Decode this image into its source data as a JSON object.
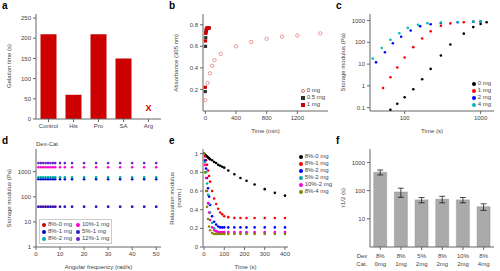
{
  "chart_data": [
    {
      "type": "bar",
      "title": "a",
      "categories": [
        "Control",
        "His",
        "Pro",
        "SA",
        "Arg"
      ],
      "values": [
        210,
        60,
        210,
        150,
        0
      ],
      "color": "#cc0000",
      "ylabel": "Gelation time (s)",
      "ylim": [
        0,
        260
      ],
      "yticks": [
        0,
        50,
        100,
        150,
        200,
        250
      ],
      "grid": false,
      "annotations": [
        {
          "text": "X",
          "x": "Arg",
          "y": 8,
          "color": "#cc0000"
        }
      ]
    },
    {
      "type": "scatter",
      "title": "b",
      "xlabel": "Time (min)",
      "ylabel": "Absorbance (305 nm)",
      "xlim": [
        -30,
        1600
      ],
      "xticks": [
        0,
        400,
        800,
        1200
      ],
      "ylim": [
        0,
        0.9
      ],
      "yticks": [
        0.2,
        0.4,
        0.6,
        0.8
      ],
      "grid": false,
      "legend": "lower right",
      "series": [
        {
          "name": "0 mg",
          "color": "#e07070",
          "marker": "open_circle",
          "x": [
            0,
            30,
            60,
            90,
            120,
            200,
            400,
            600,
            800,
            1000,
            1200,
            1500
          ],
          "values": [
            0.1,
            0.26,
            0.35,
            0.42,
            0.47,
            0.53,
            0.6,
            0.64,
            0.67,
            0.69,
            0.7,
            0.72
          ]
        },
        {
          "name": "0.5 mg",
          "color": "#303030",
          "marker": "square",
          "x": [
            0,
            3,
            6,
            10,
            15,
            20,
            30,
            50
          ],
          "values": [
            0.18,
            0.6,
            0.68,
            0.73,
            0.75,
            0.76,
            0.77,
            0.77
          ]
        },
        {
          "name": "1 mg",
          "color": "#cc0000",
          "marker": "square",
          "x": [
            0,
            3,
            6,
            10,
            15,
            20,
            30,
            50
          ],
          "values": [
            0.22,
            0.65,
            0.72,
            0.75,
            0.76,
            0.77,
            0.77,
            0.77
          ]
        }
      ]
    },
    {
      "type": "scatter",
      "title": "c",
      "xlabel": "Time (s)",
      "ylabel": "Storage modulus (Pa)",
      "log": true,
      "xlim": [
        35,
        1500
      ],
      "xticks": [
        100,
        1000
      ],
      "ylim": [
        0.07,
        2000
      ],
      "yticks": [
        0.1,
        1,
        10,
        100,
        1000
      ],
      "grid": false,
      "legend": "lower right",
      "series": [
        {
          "name": "0 mg",
          "color": "black",
          "marker": "dot",
          "x": [
            65,
            80,
            100,
            130,
            170,
            220,
            300,
            400,
            600,
            800,
            1000,
            1200
          ],
          "values": [
            0.08,
            0.15,
            0.3,
            0.7,
            2.0,
            6.0,
            25,
            80,
            250,
            500,
            700,
            830
          ]
        },
        {
          "name": "1 mg",
          "color": "red",
          "marker": "dot",
          "x": [
            52,
            65,
            80,
            100,
            130,
            170,
            220,
            300,
            400,
            600,
            800,
            1000
          ],
          "values": [
            0.8,
            2.5,
            7,
            20,
            60,
            150,
            320,
            580,
            740,
            840,
            880,
            910
          ]
        },
        {
          "name": "2 mg",
          "color": "blue",
          "marker": "dot",
          "x": [
            42,
            55,
            70,
            90,
            120,
            160,
            220,
            300,
            500,
            800,
            1000
          ],
          "values": [
            12,
            35,
            90,
            180,
            350,
            550,
            680,
            770,
            840,
            880,
            900
          ]
        },
        {
          "name": "4 mg",
          "color": "#00bbbb",
          "marker": "dot",
          "x": [
            38,
            50,
            65,
            85,
            110,
            150,
            200,
            300,
            500,
            800,
            1000
          ],
          "values": [
            18,
            55,
            130,
            260,
            460,
            640,
            750,
            820,
            860,
            890,
            910
          ]
        }
      ]
    },
    {
      "type": "scatter",
      "title": "d",
      "subtitle": "Dex-Cat",
      "xlabel": "Angular frequency (rad/s)",
      "ylabel": "Storage modulus (Pa)",
      "log": "y",
      "xlim": [
        0,
        52
      ],
      "xticks": [
        0,
        10,
        20,
        30,
        40,
        50
      ],
      "ylim": [
        1,
        8000
      ],
      "yticks": [
        1,
        10,
        100,
        1000
      ],
      "grid": false,
      "legend": "lower left",
      "x": [
        1,
        2,
        3,
        4,
        5,
        6,
        7,
        8,
        10,
        12,
        15,
        20,
        25,
        30,
        35,
        40,
        45,
        50
      ],
      "series": [
        {
          "name": "8%-0 mg",
          "color": "#cc0000",
          "marker": "dot",
          "values": [
            40,
            40,
            40,
            40,
            40,
            40,
            40,
            40,
            40,
            40,
            40,
            40,
            40,
            40,
            40,
            40,
            40,
            40
          ]
        },
        {
          "name": "8%-1 mg",
          "color": "#0000cc",
          "marker": "dot",
          "values": [
            500,
            500,
            500,
            500,
            500,
            500,
            500,
            500,
            500,
            500,
            500,
            500,
            500,
            500,
            500,
            500,
            500,
            500
          ]
        },
        {
          "name": "8%-2 mg",
          "color": "#00aaaa",
          "marker": "dot",
          "values": [
            600,
            600,
            600,
            600,
            600,
            600,
            600,
            600,
            600,
            600,
            600,
            600,
            600,
            600,
            600,
            600,
            600,
            600
          ]
        },
        {
          "name": "10%-1 mg",
          "color": "#ff00cc",
          "marker": "dot",
          "values": [
            1500,
            1500,
            1500,
            1500,
            1500,
            1500,
            1500,
            1500,
            1500,
            1500,
            1500,
            1500,
            1500,
            1500,
            1500,
            1500,
            1500,
            1500
          ]
        },
        {
          "name": "5%-1 mg",
          "color": "#2222cc",
          "marker": "dot",
          "values": [
            40,
            40,
            40,
            40,
            40,
            40,
            40,
            40,
            40,
            40,
            40,
            40,
            40,
            40,
            40,
            40,
            40,
            40
          ]
        },
        {
          "name": "12%-1 mg",
          "color": "#6622cc",
          "marker": "dot",
          "values": [
            2200,
            2200,
            2200,
            2200,
            2200,
            2200,
            2200,
            2200,
            2200,
            2200,
            2200,
            2200,
            2200,
            2200,
            2200,
            2200,
            2200,
            2200
          ]
        }
      ]
    },
    {
      "type": "scatter",
      "title": "e",
      "xlabel": "Time (s)",
      "ylabel": "Relaxation modulus\n(norm.)",
      "xlim": [
        -5,
        415
      ],
      "xticks": [
        0,
        100,
        200,
        300,
        400
      ],
      "ylim": [
        0,
        1.05
      ],
      "yticks": [
        0,
        0.2,
        0.4,
        0.6,
        0.8,
        1
      ],
      "grid": false,
      "legend": "right",
      "x": [
        0,
        5,
        10,
        15,
        20,
        25,
        30,
        40,
        50,
        60,
        70,
        80,
        90,
        100,
        120,
        150,
        180,
        210,
        250,
        300,
        350,
        400
      ],
      "series": [
        {
          "name": "8%-0 mg",
          "color": "black",
          "marker": "dot",
          "values": [
            1.0,
            0.99,
            0.98,
            0.97,
            0.96,
            0.95,
            0.94,
            0.93,
            0.91,
            0.9,
            0.88,
            0.87,
            0.86,
            0.85,
            0.82,
            0.78,
            0.74,
            0.71,
            0.67,
            0.62,
            0.58,
            0.55
          ]
        },
        {
          "name": "8%-1 mg",
          "color": "red",
          "marker": "dot",
          "values": [
            1.0,
            0.97,
            0.93,
            0.88,
            0.82,
            0.76,
            0.7,
            0.6,
            0.52,
            0.46,
            0.41,
            0.37,
            0.35,
            0.33,
            0.32,
            0.31,
            0.31,
            0.31,
            0.31,
            0.31,
            0.31,
            0.31
          ]
        },
        {
          "name": "8%-2 mg",
          "color": "blue",
          "marker": "dot",
          "values": [
            1.0,
            0.93,
            0.84,
            0.74,
            0.63,
            0.54,
            0.45,
            0.33,
            0.27,
            0.24,
            0.22,
            0.21,
            0.21,
            0.21,
            0.21,
            0.21,
            0.21,
            0.21,
            0.21,
            0.21,
            0.21,
            0.21
          ]
        },
        {
          "name": "5%-2 mg",
          "color": "#00aaaa",
          "marker": "dot",
          "values": [
            1.0,
            0.91,
            0.8,
            0.68,
            0.56,
            0.46,
            0.37,
            0.26,
            0.2,
            0.17,
            0.16,
            0.15,
            0.15,
            0.15,
            0.15,
            0.15,
            0.15,
            0.15,
            0.15,
            0.15,
            0.15,
            0.15
          ]
        },
        {
          "name": "10%-2 mg",
          "color": "#ff00cc",
          "marker": "dot",
          "values": [
            1.0,
            0.88,
            0.74,
            0.6,
            0.47,
            0.37,
            0.29,
            0.21,
            0.18,
            0.17,
            0.16,
            0.16,
            0.16,
            0.16,
            0.16,
            0.16,
            0.16,
            0.16,
            0.16,
            0.16,
            0.16,
            0.16
          ]
        },
        {
          "name": "8%-4 mg",
          "color": "#888800",
          "marker": "dot",
          "values": [
            1.0,
            0.8,
            0.6,
            0.43,
            0.3,
            0.22,
            0.18,
            0.15,
            0.14,
            0.14,
            0.14,
            0.14,
            0.14,
            0.14,
            0.14,
            0.14,
            0.14,
            0.14,
            0.14,
            0.14,
            0.14,
            0.14
          ]
        }
      ]
    },
    {
      "type": "bar",
      "title": "f",
      "log": "y",
      "ylabel": "τ1/2 (s)",
      "categories": [
        [
          "8%",
          "0mg"
        ],
        [
          "8%",
          "1mg"
        ],
        [
          "5%",
          "2mg"
        ],
        [
          "8%",
          "2mg"
        ],
        [
          "10%",
          "2mg"
        ],
        [
          "8%",
          "4mg"
        ]
      ],
      "category_levels": [
        "Dex",
        "Cat."
      ],
      "values": [
        450,
        90,
        47,
        50,
        47,
        27
      ],
      "errors": [
        90,
        32,
        10,
        13,
        10,
        7
      ],
      "color": "#aaaaaa",
      "ylim": [
        1,
        3000
      ],
      "yticks": [
        10,
        100,
        1000
      ],
      "grid": false
    }
  ]
}
